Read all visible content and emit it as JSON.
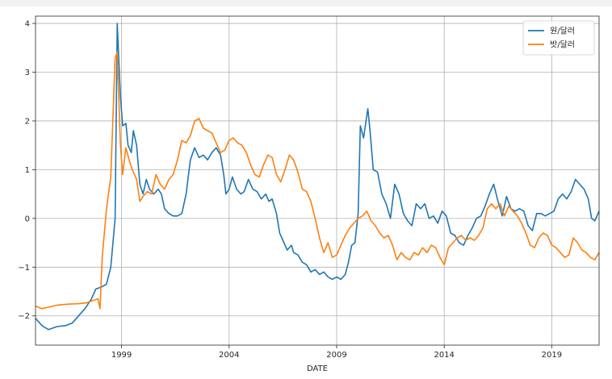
{
  "chart_data": {
    "type": "line",
    "title": "",
    "xlabel": "DATE",
    "ylabel": "",
    "x_ticks": [
      "1999",
      "2004",
      "2009",
      "2014",
      "2019"
    ],
    "y_ticks": [
      "4",
      "3",
      "2",
      "1",
      "0",
      "−1",
      "−2"
    ],
    "xlim": [
      1995.0,
      2021.2
    ],
    "ylim": [
      -2.6,
      4.15
    ],
    "grid": true,
    "legend_position": "upper-right",
    "series": [
      {
        "name": "원/달러",
        "color": "#1f77b4",
        "points": [
          [
            1995.0,
            -2.05
          ],
          [
            1995.3,
            -2.2
          ],
          [
            1995.6,
            -2.28
          ],
          [
            1996.0,
            -2.22
          ],
          [
            1996.4,
            -2.2
          ],
          [
            1996.7,
            -2.15
          ],
          [
            1997.0,
            -2.0
          ],
          [
            1997.3,
            -1.85
          ],
          [
            1997.6,
            -1.65
          ],
          [
            1997.8,
            -1.45
          ],
          [
            1998.1,
            -1.4
          ],
          [
            1998.3,
            -1.35
          ],
          [
            1998.5,
            -1.0
          ],
          [
            1998.7,
            0.0
          ],
          [
            1998.8,
            4.0
          ],
          [
            1998.95,
            2.5
          ],
          [
            1999.05,
            1.9
          ],
          [
            1999.2,
            1.95
          ],
          [
            1999.3,
            1.5
          ],
          [
            1999.45,
            1.35
          ],
          [
            1999.55,
            1.8
          ],
          [
            1999.7,
            1.5
          ],
          [
            1999.85,
            0.7
          ],
          [
            2000.0,
            0.5
          ],
          [
            2000.15,
            0.8
          ],
          [
            2000.3,
            0.6
          ],
          [
            2000.5,
            0.5
          ],
          [
            2000.7,
            0.6
          ],
          [
            2000.85,
            0.5
          ],
          [
            2001.0,
            0.2
          ],
          [
            2001.2,
            0.1
          ],
          [
            2001.4,
            0.05
          ],
          [
            2001.6,
            0.05
          ],
          [
            2001.8,
            0.1
          ],
          [
            2002.0,
            0.5
          ],
          [
            2002.2,
            1.2
          ],
          [
            2002.4,
            1.45
          ],
          [
            2002.6,
            1.25
          ],
          [
            2002.8,
            1.3
          ],
          [
            2003.0,
            1.2
          ],
          [
            2003.2,
            1.35
          ],
          [
            2003.4,
            1.45
          ],
          [
            2003.6,
            1.3
          ],
          [
            2003.75,
            0.9
          ],
          [
            2003.85,
            0.5
          ],
          [
            2004.0,
            0.6
          ],
          [
            2004.15,
            0.85
          ],
          [
            2004.35,
            0.6
          ],
          [
            2004.55,
            0.5
          ],
          [
            2004.7,
            0.55
          ],
          [
            2004.9,
            0.8
          ],
          [
            2005.1,
            0.6
          ],
          [
            2005.3,
            0.55
          ],
          [
            2005.5,
            0.4
          ],
          [
            2005.7,
            0.5
          ],
          [
            2005.85,
            0.35
          ],
          [
            2006.0,
            0.4
          ],
          [
            2006.2,
            0.1
          ],
          [
            2006.35,
            -0.3
          ],
          [
            2006.5,
            -0.45
          ],
          [
            2006.7,
            -0.65
          ],
          [
            2006.9,
            -0.55
          ],
          [
            2007.0,
            -0.7
          ],
          [
            2007.2,
            -0.75
          ],
          [
            2007.4,
            -0.9
          ],
          [
            2007.6,
            -0.95
          ],
          [
            2007.8,
            -1.1
          ],
          [
            2008.0,
            -1.05
          ],
          [
            2008.2,
            -1.15
          ],
          [
            2008.4,
            -1.1
          ],
          [
            2008.6,
            -1.2
          ],
          [
            2008.8,
            -1.25
          ],
          [
            2009.0,
            -1.2
          ],
          [
            2009.2,
            -1.25
          ],
          [
            2009.4,
            -1.15
          ],
          [
            2009.55,
            -0.9
          ],
          [
            2009.7,
            -0.55
          ],
          [
            2009.85,
            -0.5
          ],
          [
            2010.0,
            0.1
          ],
          [
            2010.1,
            1.9
          ],
          [
            2010.25,
            1.65
          ],
          [
            2010.45,
            2.25
          ],
          [
            2010.55,
            1.8
          ],
          [
            2010.7,
            1.0
          ],
          [
            2010.9,
            0.95
          ],
          [
            2011.1,
            0.5
          ],
          [
            2011.3,
            0.3
          ],
          [
            2011.5,
            0.0
          ],
          [
            2011.7,
            0.7
          ],
          [
            2011.9,
            0.5
          ],
          [
            2012.1,
            0.1
          ],
          [
            2012.3,
            -0.05
          ],
          [
            2012.5,
            -0.15
          ],
          [
            2012.7,
            0.3
          ],
          [
            2012.9,
            0.2
          ],
          [
            2013.1,
            0.3
          ],
          [
            2013.3,
            0.0
          ],
          [
            2013.5,
            0.05
          ],
          [
            2013.7,
            -0.1
          ],
          [
            2013.9,
            0.15
          ],
          [
            2014.1,
            0.05
          ],
          [
            2014.3,
            -0.3
          ],
          [
            2014.5,
            -0.35
          ],
          [
            2014.7,
            -0.5
          ],
          [
            2014.9,
            -0.55
          ],
          [
            2015.1,
            -0.35
          ],
          [
            2015.3,
            -0.2
          ],
          [
            2015.5,
            0.0
          ],
          [
            2015.7,
            0.05
          ],
          [
            2015.9,
            0.25
          ],
          [
            2016.1,
            0.5
          ],
          [
            2016.3,
            0.7
          ],
          [
            2016.5,
            0.35
          ],
          [
            2016.7,
            0.05
          ],
          [
            2016.9,
            0.45
          ],
          [
            2017.1,
            0.2
          ],
          [
            2017.3,
            0.15
          ],
          [
            2017.5,
            0.2
          ],
          [
            2017.7,
            0.15
          ],
          [
            2017.9,
            -0.15
          ],
          [
            2018.1,
            -0.25
          ],
          [
            2018.3,
            0.1
          ],
          [
            2018.5,
            0.1
          ],
          [
            2018.7,
            0.05
          ],
          [
            2018.9,
            0.1
          ],
          [
            2019.1,
            0.15
          ],
          [
            2019.3,
            0.4
          ],
          [
            2019.5,
            0.5
          ],
          [
            2019.7,
            0.4
          ],
          [
            2019.9,
            0.55
          ],
          [
            2020.1,
            0.8
          ],
          [
            2020.3,
            0.7
          ],
          [
            2020.5,
            0.6
          ],
          [
            2020.7,
            0.4
          ],
          [
            2020.85,
            0.0
          ],
          [
            2021.0,
            -0.05
          ],
          [
            2021.2,
            0.15
          ]
        ]
      },
      {
        "name": "밧/달러",
        "color": "#ff7f0e",
        "points": [
          [
            1995.0,
            -1.8
          ],
          [
            1995.3,
            -1.85
          ],
          [
            1995.6,
            -1.82
          ],
          [
            1996.0,
            -1.78
          ],
          [
            1996.5,
            -1.76
          ],
          [
            1997.0,
            -1.75
          ],
          [
            1997.4,
            -1.73
          ],
          [
            1997.7,
            -1.68
          ],
          [
            1997.9,
            -1.65
          ],
          [
            1998.0,
            -1.85
          ],
          [
            1998.1,
            -0.8
          ],
          [
            1998.3,
            0.2
          ],
          [
            1998.5,
            0.85
          ],
          [
            1998.7,
            3.3
          ],
          [
            1998.8,
            3.4
          ],
          [
            1998.95,
            1.5
          ],
          [
            1999.05,
            0.9
          ],
          [
            1999.2,
            1.45
          ],
          [
            1999.35,
            1.2
          ],
          [
            1999.5,
            1.0
          ],
          [
            1999.7,
            0.8
          ],
          [
            1999.85,
            0.35
          ],
          [
            2000.0,
            0.45
          ],
          [
            2000.2,
            0.55
          ],
          [
            2000.4,
            0.5
          ],
          [
            2000.6,
            0.9
          ],
          [
            2000.8,
            0.7
          ],
          [
            2001.0,
            0.6
          ],
          [
            2001.2,
            0.8
          ],
          [
            2001.4,
            0.9
          ],
          [
            2001.6,
            1.2
          ],
          [
            2001.8,
            1.6
          ],
          [
            2002.0,
            1.55
          ],
          [
            2002.2,
            1.7
          ],
          [
            2002.4,
            2.0
          ],
          [
            2002.6,
            2.05
          ],
          [
            2002.8,
            1.85
          ],
          [
            2003.0,
            1.8
          ],
          [
            2003.2,
            1.75
          ],
          [
            2003.4,
            1.55
          ],
          [
            2003.6,
            1.35
          ],
          [
            2003.8,
            1.4
          ],
          [
            2004.0,
            1.6
          ],
          [
            2004.2,
            1.65
          ],
          [
            2004.4,
            1.55
          ],
          [
            2004.6,
            1.5
          ],
          [
            2004.8,
            1.35
          ],
          [
            2005.0,
            1.1
          ],
          [
            2005.2,
            0.9
          ],
          [
            2005.4,
            0.85
          ],
          [
            2005.6,
            1.1
          ],
          [
            2005.8,
            1.3
          ],
          [
            2006.0,
            1.25
          ],
          [
            2006.2,
            0.9
          ],
          [
            2006.4,
            0.75
          ],
          [
            2006.6,
            1.0
          ],
          [
            2006.8,
            1.3
          ],
          [
            2007.0,
            1.2
          ],
          [
            2007.2,
            0.95
          ],
          [
            2007.4,
            0.6
          ],
          [
            2007.6,
            0.55
          ],
          [
            2007.8,
            0.35
          ],
          [
            2008.0,
            0.0
          ],
          [
            2008.2,
            -0.4
          ],
          [
            2008.4,
            -0.7
          ],
          [
            2008.6,
            -0.5
          ],
          [
            2008.8,
            -0.8
          ],
          [
            2009.0,
            -0.75
          ],
          [
            2009.2,
            -0.55
          ],
          [
            2009.4,
            -0.35
          ],
          [
            2009.6,
            -0.2
          ],
          [
            2009.8,
            -0.1
          ],
          [
            2010.0,
            0.0
          ],
          [
            2010.2,
            0.05
          ],
          [
            2010.4,
            0.15
          ],
          [
            2010.6,
            -0.05
          ],
          [
            2010.8,
            -0.15
          ],
          [
            2011.0,
            -0.3
          ],
          [
            2011.2,
            -0.4
          ],
          [
            2011.4,
            -0.35
          ],
          [
            2011.6,
            -0.55
          ],
          [
            2011.8,
            -0.85
          ],
          [
            2012.0,
            -0.7
          ],
          [
            2012.2,
            -0.8
          ],
          [
            2012.4,
            -0.85
          ],
          [
            2012.6,
            -0.7
          ],
          [
            2012.8,
            -0.75
          ],
          [
            2013.0,
            -0.6
          ],
          [
            2013.2,
            -0.7
          ],
          [
            2013.4,
            -0.55
          ],
          [
            2013.6,
            -0.6
          ],
          [
            2013.8,
            -0.8
          ],
          [
            2014.0,
            -0.95
          ],
          [
            2014.2,
            -0.6
          ],
          [
            2014.4,
            -0.5
          ],
          [
            2014.6,
            -0.4
          ],
          [
            2014.8,
            -0.35
          ],
          [
            2015.0,
            -0.45
          ],
          [
            2015.2,
            -0.4
          ],
          [
            2015.4,
            -0.45
          ],
          [
            2015.6,
            -0.35
          ],
          [
            2015.8,
            -0.2
          ],
          [
            2016.0,
            0.2
          ],
          [
            2016.2,
            0.3
          ],
          [
            2016.4,
            0.2
          ],
          [
            2016.6,
            0.3
          ],
          [
            2016.8,
            0.05
          ],
          [
            2017.0,
            0.25
          ],
          [
            2017.2,
            0.15
          ],
          [
            2017.4,
            0.05
          ],
          [
            2017.6,
            -0.1
          ],
          [
            2017.8,
            -0.3
          ],
          [
            2018.0,
            -0.55
          ],
          [
            2018.2,
            -0.6
          ],
          [
            2018.4,
            -0.4
          ],
          [
            2018.6,
            -0.3
          ],
          [
            2018.8,
            -0.35
          ],
          [
            2019.0,
            -0.55
          ],
          [
            2019.2,
            -0.6
          ],
          [
            2019.4,
            -0.7
          ],
          [
            2019.6,
            -0.8
          ],
          [
            2019.8,
            -0.75
          ],
          [
            2020.0,
            -0.4
          ],
          [
            2020.2,
            -0.5
          ],
          [
            2020.4,
            -0.65
          ],
          [
            2020.6,
            -0.7
          ],
          [
            2020.8,
            -0.8
          ],
          [
            2021.0,
            -0.85
          ],
          [
            2021.2,
            -0.7
          ]
        ]
      }
    ]
  }
}
